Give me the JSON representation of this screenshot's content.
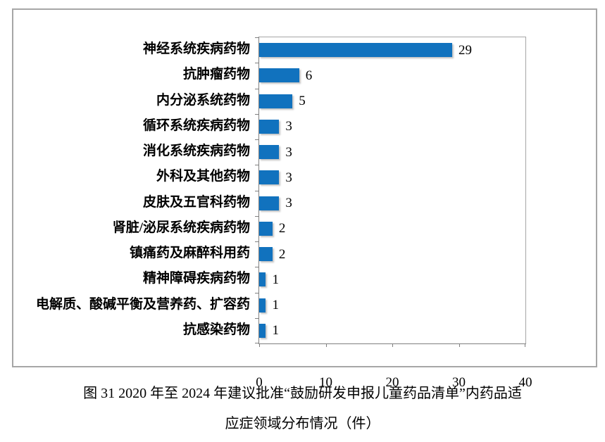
{
  "chart_data": {
    "type": "bar",
    "orientation": "horizontal",
    "categories": [
      "神经系统疾病药物",
      "抗肿瘤药物",
      "内分泌系统药物",
      "循环系统疾病药物",
      "消化系统疾病药物",
      "外科及其他药物",
      "皮肤及五官科药物",
      "肾脏/泌尿系统疾病药物",
      "镇痛药及麻醉科用药",
      "精神障碍疾病药物",
      "电解质、酸碱平衡及营养药、扩容药",
      "抗感染药物"
    ],
    "values": [
      29,
      6,
      5,
      3,
      3,
      3,
      3,
      2,
      2,
      1,
      1,
      1
    ],
    "data_labels": [
      29,
      6,
      5,
      3,
      3,
      3,
      3,
      2,
      2,
      1,
      1,
      1
    ],
    "xlim": [
      0,
      40
    ],
    "xticks": [
      0,
      10,
      20,
      30,
      40
    ],
    "grid": false,
    "legend": false,
    "bar_color": "#1172be",
    "axis_color": "#7f7f7f",
    "frame_border_color": "#a6a6a6"
  },
  "caption": {
    "line1": "图 31  2020 年至 2024 年建议批准“鼓励研发申报儿童药品清单”内药品适",
    "line2": "应症领域分布情况（件）"
  }
}
